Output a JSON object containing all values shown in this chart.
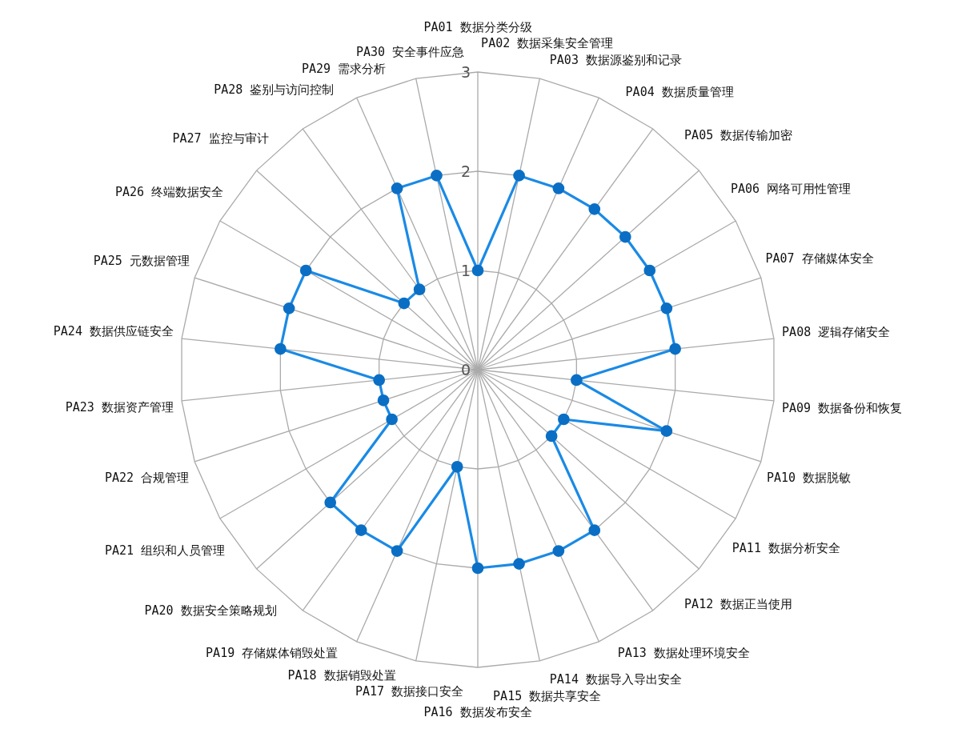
{
  "chart_data": {
    "type": "radar",
    "categories": [
      "PA01 数据分类分级",
      "PA02 数据采集安全管理",
      "PA03 数据源鉴别和记录",
      "PA04 数据质量管理",
      "PA05 数据传输加密",
      "PA06 网络可用性管理",
      "PA07 存储媒体安全",
      "PA08 逻辑存储安全",
      "PA09 数据备份和恢复",
      "PA10 数据脱敏",
      "PA11 数据分析安全",
      "PA12 数据正当使用",
      "PA13 数据处理环境安全",
      "PA14 数据导入导出安全",
      "PA15 数据共享安全",
      "PA16 数据发布安全",
      "PA17 数据接口安全",
      "PA18 数据销毁处置",
      "PA19 存储媒体销毁处置",
      "PA20 数据安全策略规划",
      "PA21 组织和人员管理",
      "PA22 合规管理",
      "PA23 数据资产管理",
      "PA24 数据供应链安全",
      "PA25 元数据管理",
      "PA26 终端数据安全",
      "PA27 监控与审计",
      "PA28 鉴别与访问控制",
      "PA29 需求分析",
      "PA30 安全事件应急"
    ],
    "series": [
      {
        "color": "#1a8ae5",
        "colors": [
          "#0a6fc4",
          "#0a6fc4",
          "#0a6fc4",
          "#0a6fc4",
          "#0a6fc4",
          "#0a6fc4",
          "#0a6fc4",
          "#0a6fc4",
          "#0a6fc4",
          "#0a6fc4",
          "#0a6fc4",
          "#0a6fc4",
          "#0a6fc4",
          "#0a6fc4",
          "#0a6fc4",
          "#0a6fc4",
          "#0a6fc4",
          "#0a6fc4",
          "#0a6fc4",
          "#0a6fc4",
          "#0a6fc4",
          "#0a6fc4",
          "#0a6fc4",
          "#0a6fc4",
          "#0a6fc4",
          "#0a6fc4",
          "#0a6fc4",
          "#0a6fc4",
          "#0a6fc4",
          "#0a6fc4"
        ],
        "values": [
          1,
          2,
          2,
          2,
          2,
          2,
          2,
          2,
          1,
          2,
          1,
          1,
          2,
          2,
          2,
          2,
          1,
          2,
          2,
          2,
          1,
          1,
          1,
          2,
          2,
          2,
          1,
          1,
          2,
          2
        ]
      }
    ],
    "ylim": [
      0,
      3
    ],
    "yticks": [
      0,
      1,
      2,
      3
    ],
    "grid": true,
    "marker": "circle",
    "line_style": "solid"
  }
}
